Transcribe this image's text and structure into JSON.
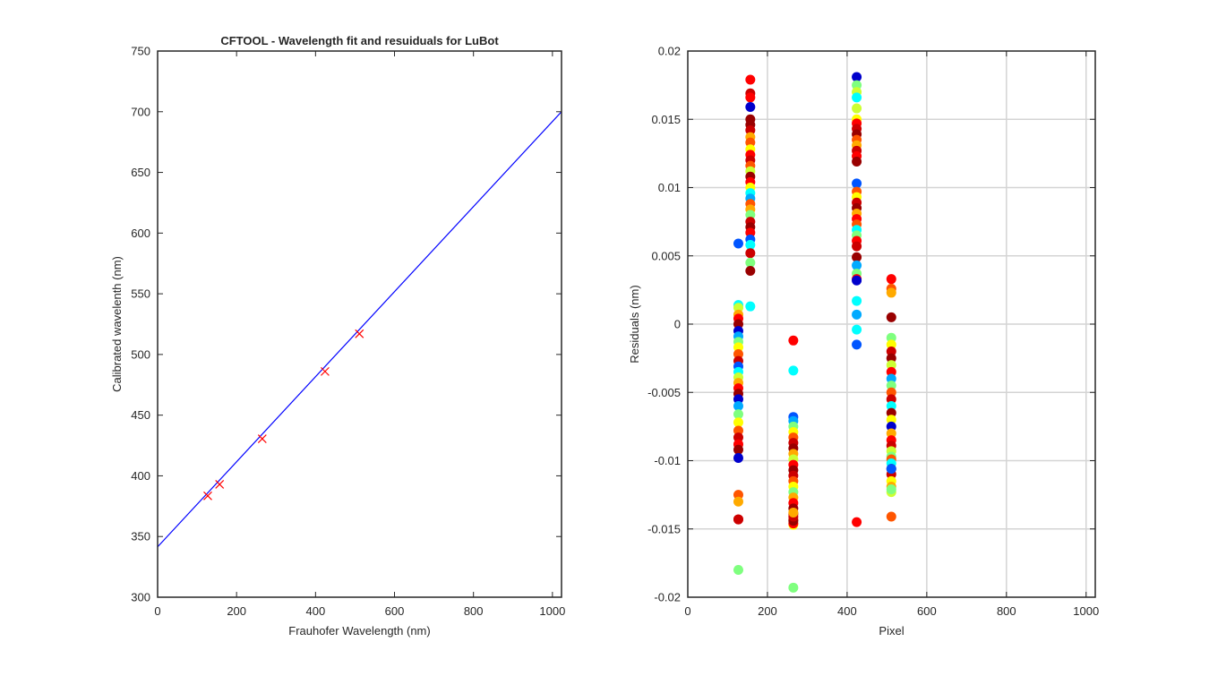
{
  "chart_data": [
    {
      "type": "line",
      "title": "CFTOOL - Wavelength fit and resuiduals for LuBot",
      "xlabel": "Frauhofer Wavelength (nm)",
      "ylabel": "Calibrated wavelenth (nm)",
      "xlim": [
        0,
        1023
      ],
      "ylim": [
        300,
        750
      ],
      "xticks": [
        0,
        200,
        400,
        600,
        800,
        1000
      ],
      "xtick_labels": [
        "0",
        "200",
        "400",
        "600",
        "800",
        "1000"
      ],
      "yticks": [
        300,
        350,
        400,
        450,
        500,
        550,
        600,
        650,
        700,
        750
      ],
      "ytick_labels": [
        "300",
        "350",
        "400",
        "450",
        "500",
        "550",
        "600",
        "650",
        "700",
        "750"
      ],
      "grid": false,
      "series": [
        {
          "kind": "line",
          "color": "#0000ff",
          "x": [
            0,
            1023
          ],
          "y": [
            341.5,
            700
          ]
        },
        {
          "kind": "marker-x",
          "color": "#ff0000",
          "x": [
            127,
            157,
            265,
            424,
            511
          ],
          "y": [
            383.5,
            393.0,
            430.5,
            486.0,
            517.0
          ]
        }
      ]
    },
    {
      "type": "scatter",
      "title": "",
      "xlabel": "Pixel",
      "ylabel": "Residuals  (nm)",
      "xlim": [
        0,
        1023
      ],
      "ylim": [
        -0.02,
        0.02
      ],
      "xticks": [
        0,
        200,
        400,
        600,
        800,
        1000
      ],
      "xtick_labels": [
        "0",
        "200",
        "400",
        "600",
        "800",
        "1000"
      ],
      "yticks": [
        -0.02,
        -0.015,
        -0.01,
        -0.005,
        0,
        0.005,
        0.01,
        0.015,
        0.02
      ],
      "ytick_labels": [
        "-0.02",
        "-0.015",
        "-0.01",
        "-0.005",
        "0",
        "0.005",
        "0.01",
        "0.015",
        "0.02"
      ],
      "grid": true,
      "colormap": [
        "#0000cc",
        "#0055ff",
        "#00aaff",
        "#00ffff",
        "#7fff7f",
        "#ccff33",
        "#ffff00",
        "#ffaa00",
        "#ff5500",
        "#ff0000",
        "#cc0000",
        "#990000"
      ],
      "series": [
        {
          "x": 127,
          "color_index": [
            1,
            3,
            5,
            7,
            9,
            11,
            0,
            2,
            4,
            6,
            8,
            10,
            1,
            3,
            5,
            7,
            9,
            11,
            0,
            2,
            4,
            6,
            8,
            10,
            9,
            11,
            0,
            8,
            7,
            9,
            10,
            4
          ],
          "y": [
            0.0059,
            0.0014,
            0.0012,
            0.0007,
            0.0004,
            0.0,
            -0.0005,
            -0.0009,
            -0.0013,
            -0.0017,
            -0.0022,
            -0.0027,
            -0.0031,
            -0.0035,
            -0.0039,
            -0.0043,
            -0.0047,
            -0.0051,
            -0.0055,
            -0.006,
            -0.0066,
            -0.0072,
            -0.0078,
            -0.0083,
            -0.0088,
            -0.0092,
            -0.0098,
            -0.0125,
            -0.013,
            -0.0143,
            -0.0143,
            -0.018
          ]
        },
        {
          "x": 157,
          "color_index": [
            9,
            10,
            9,
            0,
            11,
            11,
            10,
            7,
            8,
            6,
            9,
            10,
            8,
            5,
            11,
            9,
            6,
            3,
            2,
            8,
            7,
            4,
            10,
            11,
            9,
            1,
            3,
            10,
            4,
            11,
            3
          ],
          "y": [
            0.0179,
            0.0169,
            0.0166,
            0.0159,
            0.015,
            0.0146,
            0.0142,
            0.0137,
            0.0133,
            0.0128,
            0.0124,
            0.012,
            0.0116,
            0.0112,
            0.0108,
            0.0104,
            0.01,
            0.0096,
            0.0092,
            0.0088,
            0.0084,
            0.008,
            0.0075,
            0.0071,
            0.0067,
            0.0062,
            0.0058,
            0.0052,
            0.0045,
            0.0039,
            0.0013
          ]
        },
        {
          "x": 265,
          "color_index": [
            9,
            3,
            1,
            2,
            4,
            6,
            8,
            10,
            11,
            7,
            5,
            9,
            11,
            10,
            8,
            6,
            4,
            7,
            9,
            11,
            10,
            8,
            6,
            9,
            11,
            10,
            7,
            4
          ],
          "y": [
            -0.0012,
            -0.0034,
            -0.0068,
            -0.0071,
            -0.0075,
            -0.0079,
            -0.0083,
            -0.0087,
            -0.0091,
            -0.0095,
            -0.0099,
            -0.0103,
            -0.0107,
            -0.0111,
            -0.0115,
            -0.0119,
            -0.0123,
            -0.0127,
            -0.0131,
            -0.0135,
            -0.0139,
            -0.0143,
            -0.0147,
            -0.0146,
            -0.0144,
            -0.0141,
            -0.0138,
            -0.0193
          ]
        },
        {
          "x": 424,
          "color_index": [
            0,
            4,
            5,
            3,
            5,
            6,
            9,
            10,
            11,
            8,
            7,
            10,
            9,
            11,
            1,
            8,
            6,
            10,
            11,
            7,
            9,
            8,
            3,
            4,
            9,
            10,
            11,
            2,
            4,
            9,
            0,
            3,
            2,
            3,
            1,
            9
          ],
          "y": [
            0.0181,
            0.0175,
            0.017,
            0.0166,
            0.0158,
            0.015,
            0.0147,
            0.0143,
            0.0139,
            0.0135,
            0.0131,
            0.0127,
            0.0123,
            0.0119,
            0.0103,
            0.0097,
            0.0093,
            0.0089,
            0.0085,
            0.0081,
            0.0077,
            0.0073,
            0.0069,
            0.0065,
            0.0061,
            0.0057,
            0.0049,
            0.0043,
            0.0037,
            0.0033,
            0.0032,
            0.0017,
            0.0007,
            -0.0004,
            -0.0015,
            -0.0145
          ]
        },
        {
          "x": 511,
          "color_index": [
            9,
            8,
            7,
            11,
            4,
            6,
            10,
            11,
            5,
            9,
            2,
            4,
            8,
            10,
            3,
            11,
            6,
            0,
            7,
            9,
            10,
            5,
            4,
            8,
            3,
            11,
            10,
            1,
            6,
            7,
            5,
            4,
            8
          ],
          "y": [
            0.0033,
            0.0026,
            0.0023,
            0.0005,
            -0.001,
            -0.0015,
            -0.002,
            -0.0025,
            -0.003,
            -0.0035,
            -0.004,
            -0.0045,
            -0.005,
            -0.0055,
            -0.006,
            -0.0065,
            -0.007,
            -0.0075,
            -0.008,
            -0.0085,
            -0.0089,
            -0.0093,
            -0.0097,
            -0.0099,
            -0.0102,
            -0.0106,
            -0.011,
            -0.0106,
            -0.0115,
            -0.0119,
            -0.0123,
            -0.0121,
            -0.0141
          ]
        }
      ]
    }
  ]
}
